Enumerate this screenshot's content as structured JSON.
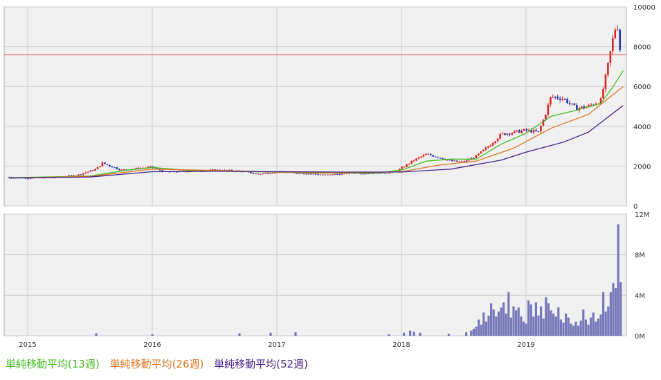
{
  "chart_data": [
    {
      "type": "candlestick",
      "panel": "price",
      "x_ticks": [
        "2015",
        "2016",
        "2017",
        "2018",
        "2019"
      ],
      "y_ticks": [
        "0",
        "2000",
        "4000",
        "6000",
        "8000",
        "10000"
      ],
      "ylim": [
        0,
        10000
      ],
      "reference_line": {
        "value": 7600,
        "color": "#e05050"
      },
      "grid": true,
      "colors": {
        "up": "#dd2222",
        "down": "#2233aa",
        "background": "#f0f0f0"
      },
      "series": [
        {
          "name": "単純移動平均(13週)",
          "color": "#44bb22"
        },
        {
          "name": "単純移動平均(26週)",
          "color": "#dd7722"
        },
        {
          "name": "単純移動平均(52週)",
          "color": "#442288"
        }
      ],
      "price_path": [
        [
          2014.85,
          1450
        ],
        [
          2015.0,
          1400
        ],
        [
          2015.2,
          1420
        ],
        [
          2015.4,
          1550
        ],
        [
          2015.55,
          1850
        ],
        [
          2015.6,
          2150
        ],
        [
          2015.75,
          1800
        ],
        [
          2016.0,
          1950
        ],
        [
          2016.1,
          1700
        ],
        [
          2016.3,
          1750
        ],
        [
          2016.5,
          1800
        ],
        [
          2016.7,
          1750
        ],
        [
          2016.85,
          1600
        ],
        [
          2017.0,
          1700
        ],
        [
          2017.2,
          1650
        ],
        [
          2017.4,
          1550
        ],
        [
          2017.6,
          1650
        ],
        [
          2017.8,
          1650
        ],
        [
          2017.95,
          1700
        ],
        [
          2018.0,
          1900
        ],
        [
          2018.1,
          2300
        ],
        [
          2018.2,
          2600
        ],
        [
          2018.3,
          2450
        ],
        [
          2018.4,
          2250
        ],
        [
          2018.5,
          2200
        ],
        [
          2018.6,
          2500
        ],
        [
          2018.7,
          3000
        ],
        [
          2018.8,
          3600
        ],
        [
          2018.9,
          3700
        ],
        [
          2019.0,
          3800
        ],
        [
          2019.1,
          3700
        ],
        [
          2019.15,
          4500
        ],
        [
          2019.2,
          5500
        ],
        [
          2019.3,
          5400
        ],
        [
          2019.4,
          4900
        ],
        [
          2019.5,
          5000
        ],
        [
          2019.6,
          5300
        ],
        [
          2019.65,
          6800
        ],
        [
          2019.7,
          8500
        ],
        [
          2019.73,
          9300
        ],
        [
          2019.76,
          7500
        ]
      ],
      "ma13": [
        [
          2014.85,
          1420
        ],
        [
          2015.5,
          1500
        ],
        [
          2015.8,
          1800
        ],
        [
          2016.0,
          1930
        ],
        [
          2016.3,
          1780
        ],
        [
          2016.8,
          1720
        ],
        [
          2017.3,
          1650
        ],
        [
          2017.8,
          1650
        ],
        [
          2018.0,
          1800
        ],
        [
          2018.2,
          2250
        ],
        [
          2018.4,
          2350
        ],
        [
          2018.6,
          2350
        ],
        [
          2018.8,
          3100
        ],
        [
          2019.0,
          3650
        ],
        [
          2019.2,
          4500
        ],
        [
          2019.4,
          4800
        ],
        [
          2019.6,
          5150
        ],
        [
          2019.7,
          6000
        ],
        [
          2019.78,
          6800
        ]
      ],
      "ma26": [
        [
          2014.85,
          1400
        ],
        [
          2015.5,
          1480
        ],
        [
          2016.0,
          1850
        ],
        [
          2016.5,
          1780
        ],
        [
          2017.0,
          1700
        ],
        [
          2017.5,
          1660
        ],
        [
          2018.0,
          1720
        ],
        [
          2018.3,
          2050
        ],
        [
          2018.6,
          2250
        ],
        [
          2018.9,
          2900
        ],
        [
          2019.2,
          3900
        ],
        [
          2019.5,
          4600
        ],
        [
          2019.78,
          6000
        ]
      ],
      "ma52": [
        [
          2014.85,
          1400
        ],
        [
          2015.5,
          1450
        ],
        [
          2016.0,
          1720
        ],
        [
          2016.5,
          1740
        ],
        [
          2017.0,
          1720
        ],
        [
          2017.5,
          1700
        ],
        [
          2018.0,
          1700
        ],
        [
          2018.4,
          1850
        ],
        [
          2018.8,
          2300
        ],
        [
          2019.0,
          2700
        ],
        [
          2019.3,
          3200
        ],
        [
          2019.5,
          3700
        ],
        [
          2019.78,
          5050
        ]
      ]
    },
    {
      "type": "bar",
      "panel": "volume",
      "y_ticks": [
        "0M",
        "4M",
        "8M",
        "12M"
      ],
      "ylim": [
        0,
        12000000
      ],
      "color": "#7777bb",
      "x_ticks": [
        "2015",
        "2016",
        "2017",
        "2018",
        "2019"
      ],
      "volume_points": [
        [
          2015.55,
          250000
        ],
        [
          2016.0,
          150000
        ],
        [
          2016.7,
          250000
        ],
        [
          2016.95,
          300000
        ],
        [
          2017.15,
          350000
        ],
        [
          2017.9,
          150000
        ],
        [
          2018.02,
          300000
        ],
        [
          2018.07,
          500000
        ],
        [
          2018.1,
          400000
        ],
        [
          2018.15,
          300000
        ],
        [
          2018.38,
          200000
        ],
        [
          2018.52,
          350000
        ],
        [
          2018.56,
          500000
        ],
        [
          2018.58,
          700000
        ],
        [
          2018.6,
          900000
        ],
        [
          2018.62,
          1600000
        ],
        [
          2018.64,
          1100000
        ],
        [
          2018.66,
          2300000
        ],
        [
          2018.68,
          1400000
        ],
        [
          2018.7,
          2000000
        ],
        [
          2018.72,
          3200000
        ],
        [
          2018.74,
          2600000
        ],
        [
          2018.76,
          1900000
        ],
        [
          2018.78,
          2400000
        ],
        [
          2018.8,
          2800000
        ],
        [
          2018.82,
          3300000
        ],
        [
          2018.84,
          2200000
        ],
        [
          2018.86,
          4300000
        ],
        [
          2018.88,
          1800000
        ],
        [
          2018.9,
          2900000
        ],
        [
          2018.92,
          2500000
        ],
        [
          2018.94,
          2800000
        ],
        [
          2018.96,
          1900000
        ],
        [
          2018.98,
          1400000
        ],
        [
          2019.0,
          1200000
        ],
        [
          2019.02,
          3500000
        ],
        [
          2019.04,
          3100000
        ],
        [
          2019.06,
          1900000
        ],
        [
          2019.08,
          3300000
        ],
        [
          2019.1,
          2000000
        ],
        [
          2019.12,
          2900000
        ],
        [
          2019.14,
          1700000
        ],
        [
          2019.16,
          3800000
        ],
        [
          2019.18,
          3200000
        ],
        [
          2019.2,
          2500000
        ],
        [
          2019.22,
          2200000
        ],
        [
          2019.24,
          1900000
        ],
        [
          2019.26,
          2800000
        ],
        [
          2019.28,
          1600000
        ],
        [
          2019.3,
          1300000
        ],
        [
          2019.32,
          2200000
        ],
        [
          2019.34,
          1800000
        ],
        [
          2019.36,
          1200000
        ],
        [
          2019.38,
          1000000
        ],
        [
          2019.4,
          1400000
        ],
        [
          2019.42,
          1000000
        ],
        [
          2019.44,
          1500000
        ],
        [
          2019.46,
          2600000
        ],
        [
          2019.48,
          1600000
        ],
        [
          2019.5,
          1100000
        ],
        [
          2019.52,
          1800000
        ],
        [
          2019.54,
          2300000
        ],
        [
          2019.56,
          1400000
        ],
        [
          2019.58,
          1700000
        ],
        [
          2019.6,
          2100000
        ],
        [
          2019.62,
          4300000
        ],
        [
          2019.64,
          2400000
        ],
        [
          2019.66,
          2900000
        ],
        [
          2019.68,
          4300000
        ],
        [
          2019.7,
          5200000
        ],
        [
          2019.72,
          4700000
        ],
        [
          2019.74,
          11000000
        ],
        [
          2019.76,
          5300000
        ]
      ]
    }
  ],
  "legend": [
    {
      "label": "単純移動平均(13週)",
      "color": "#44bb22"
    },
    {
      "label": "単純移動平均(26週)",
      "color": "#dd7722"
    },
    {
      "label": "単純移動平均(52週)",
      "color": "#442288"
    }
  ]
}
